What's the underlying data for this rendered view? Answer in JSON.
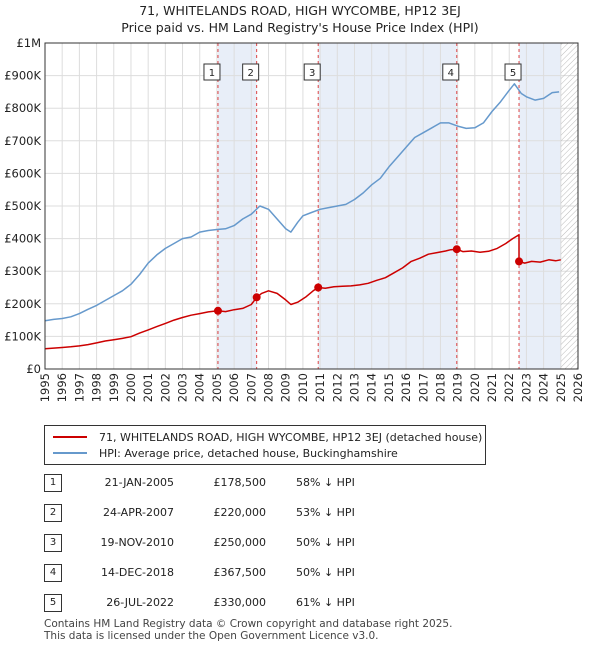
{
  "chart_data": {
    "type": "line",
    "title": "71, WHITELANDS ROAD, HIGH WYCOMBE, HP12 3EJ",
    "subtitle": "Price paid vs. HM Land Registry's House Price Index (HPI)",
    "xlabel": "",
    "ylabel": "",
    "xlim": [
      1995,
      2026
    ],
    "ylim": [
      0,
      1000000
    ],
    "x_ticks": [
      "1995",
      "1996",
      "1997",
      "1998",
      "1999",
      "2000",
      "2001",
      "2002",
      "2003",
      "2004",
      "2005",
      "2006",
      "2007",
      "2008",
      "2009",
      "2010",
      "2011",
      "2012",
      "2013",
      "2014",
      "2015",
      "2016",
      "2017",
      "2018",
      "2019",
      "2020",
      "2021",
      "2022",
      "2023",
      "2024",
      "2025",
      "2026"
    ],
    "y_ticks": [
      {
        "value": 0,
        "label": "£0"
      },
      {
        "value": 100000,
        "label": "£100K"
      },
      {
        "value": 200000,
        "label": "£200K"
      },
      {
        "value": 300000,
        "label": "£300K"
      },
      {
        "value": 400000,
        "label": "£400K"
      },
      {
        "value": 500000,
        "label": "£500K"
      },
      {
        "value": 600000,
        "label": "£600K"
      },
      {
        "value": 700000,
        "label": "£700K"
      },
      {
        "value": 800000,
        "label": "£800K"
      },
      {
        "value": 900000,
        "label": "£900K"
      },
      {
        "value": 1000000,
        "label": "£1M"
      }
    ],
    "grid": true,
    "future_hatch_from": 2025.0,
    "series": [
      {
        "name": "71, WHITELANDS ROAD, HIGH WYCOMBE, HP12 3EJ (detached house)",
        "color": "#cc0000",
        "x": [
          1995.0,
          1995.5,
          1996.0,
          1996.5,
          1997.0,
          1997.5,
          1998.0,
          1998.5,
          1999.0,
          1999.5,
          2000.0,
          2000.5,
          2001.0,
          2001.5,
          2002.0,
          2002.5,
          2003.0,
          2003.5,
          2004.0,
          2004.5,
          2005.06,
          2005.06,
          2005.5,
          2006.0,
          2006.5,
          2007.0,
          2007.31,
          2007.31,
          2007.6,
          2008.0,
          2008.5,
          2009.0,
          2009.3,
          2009.7,
          2010.2,
          2010.6,
          2010.89,
          2010.89,
          2011.3,
          2011.8,
          2012.3,
          2012.8,
          2013.3,
          2013.8,
          2014.3,
          2014.8,
          2015.3,
          2015.8,
          2016.3,
          2016.8,
          2017.3,
          2017.8,
          2018.3,
          2018.6,
          2018.95,
          2018.95,
          2019.3,
          2019.8,
          2020.3,
          2020.8,
          2021.3,
          2021.8,
          2022.2,
          2022.45,
          2022.57,
          2022.57,
          2022.9,
          2023.3,
          2023.8,
          2024.3,
          2024.7,
          2025.0
        ],
        "values": [
          62000,
          64000,
          66000,
          68000,
          71000,
          75000,
          80000,
          86000,
          90000,
          94000,
          99000,
          110000,
          120000,
          130000,
          140000,
          150000,
          158000,
          165000,
          170000,
          175000,
          178500,
          178500,
          176000,
          182000,
          186000,
          198000,
          220000,
          220000,
          232000,
          240000,
          232000,
          212000,
          198000,
          205000,
          222000,
          240000,
          250000,
          250000,
          248000,
          252000,
          254000,
          255000,
          258000,
          263000,
          272000,
          280000,
          295000,
          310000,
          330000,
          340000,
          352000,
          357000,
          362000,
          366000,
          367500,
          367500,
          360000,
          362000,
          358000,
          361000,
          370000,
          385000,
          400000,
          408000,
          412000,
          330000,
          325000,
          330000,
          328000,
          335000,
          332000,
          335000
        ]
      },
      {
        "name": "HPI: Average price, detached house, Buckinghamshire",
        "color": "#6699cc",
        "x": [
          1995.0,
          1995.5,
          1996.0,
          1996.5,
          1997.0,
          1997.5,
          1998.0,
          1998.5,
          1999.0,
          1999.5,
          2000.0,
          2000.5,
          2001.0,
          2001.5,
          2002.0,
          2002.5,
          2003.0,
          2003.5,
          2004.0,
          2004.5,
          2005.0,
          2005.5,
          2006.0,
          2006.5,
          2007.0,
          2007.5,
          2008.0,
          2008.5,
          2009.0,
          2009.3,
          2009.7,
          2010.0,
          2010.5,
          2011.0,
          2011.5,
          2012.0,
          2012.5,
          2013.0,
          2013.5,
          2014.0,
          2014.5,
          2015.0,
          2015.5,
          2016.0,
          2016.5,
          2017.0,
          2017.5,
          2018.0,
          2018.5,
          2019.0,
          2019.5,
          2020.0,
          2020.5,
          2021.0,
          2021.5,
          2022.0,
          2022.3,
          2022.7,
          2023.0,
          2023.5,
          2024.0,
          2024.5,
          2024.9
        ],
        "values": [
          148000,
          152000,
          155000,
          160000,
          170000,
          183000,
          195000,
          210000,
          225000,
          240000,
          260000,
          290000,
          325000,
          350000,
          370000,
          385000,
          400000,
          405000,
          420000,
          425000,
          428000,
          430000,
          440000,
          460000,
          475000,
          500000,
          490000,
          460000,
          430000,
          420000,
          450000,
          470000,
          480000,
          490000,
          495000,
          500000,
          505000,
          520000,
          540000,
          565000,
          585000,
          620000,
          650000,
          680000,
          710000,
          725000,
          740000,
          755000,
          755000,
          745000,
          738000,
          740000,
          755000,
          790000,
          820000,
          855000,
          875000,
          845000,
          835000,
          825000,
          830000,
          848000,
          850000
        ]
      }
    ],
    "sales": [
      {
        "id": "1",
        "x": 2005.06,
        "value": 178500
      },
      {
        "id": "2",
        "x": 2007.31,
        "value": 220000
      },
      {
        "id": "3",
        "x": 2010.89,
        "value": 250000
      },
      {
        "id": "4",
        "x": 2018.95,
        "value": 367500
      },
      {
        "id": "5",
        "x": 2022.57,
        "value": 330000
      }
    ]
  },
  "legend": {
    "property_label": "71, WHITELANDS ROAD, HIGH WYCOMBE, HP12 3EJ (detached house)",
    "hpi_label": "HPI: Average price, detached house, Buckinghamshire",
    "property_color": "#cc0000",
    "hpi_color": "#6699cc"
  },
  "table": [
    {
      "id": "1",
      "date": "21-JAN-2005",
      "price": "£178,500",
      "hpi": "58% ↓ HPI"
    },
    {
      "id": "2",
      "date": "24-APR-2007",
      "price": "£220,000",
      "hpi": "53% ↓ HPI"
    },
    {
      "id": "3",
      "date": "19-NOV-2010",
      "price": "£250,000",
      "hpi": "50% ↓ HPI"
    },
    {
      "id": "4",
      "date": "14-DEC-2018",
      "price": "£367,500",
      "hpi": "50% ↓ HPI"
    },
    {
      "id": "5",
      "date": "26-JUL-2022",
      "price": "£330,000",
      "hpi": "61% ↓ HPI"
    }
  ],
  "footer": {
    "line1": "Contains HM Land Registry data © Crown copyright and database right 2025.",
    "line2": "This data is licensed under the Open Government Licence v3.0."
  }
}
